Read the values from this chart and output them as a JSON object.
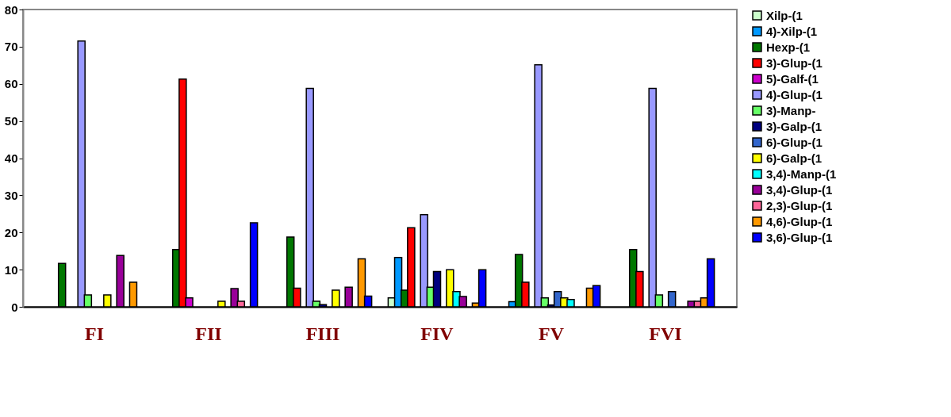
{
  "chart_data": {
    "type": "bar",
    "categories": [
      "FI",
      "FII",
      "FIII",
      "FIV",
      "FV",
      "FVI"
    ],
    "ylim": [
      0,
      80
    ],
    "yticks": [
      0,
      10,
      20,
      30,
      40,
      50,
      60,
      70,
      80
    ],
    "grid": false,
    "legend": "right",
    "series": [
      {
        "name": "Xilp-(1",
        "color": "#ccffcc",
        "values": [
          null,
          null,
          null,
          2.4,
          null,
          null
        ]
      },
      {
        "name": "4)-Xilp-(1",
        "color": "#0099ff",
        "values": [
          null,
          null,
          null,
          13.3,
          1.4,
          null
        ]
      },
      {
        "name": "Hexp-(1",
        "color": "#007700",
        "values": [
          11.7,
          15.4,
          18.8,
          4.5,
          14.1,
          15.4
        ]
      },
      {
        "name": "3)-Glup-(1",
        "color": "#ff0000",
        "values": [
          null,
          61.3,
          5.0,
          21.3,
          6.6,
          9.5
        ]
      },
      {
        "name": "5)-Galf-(1",
        "color": "#cc00cc",
        "values": [
          null,
          2.4,
          null,
          null,
          null,
          null
        ]
      },
      {
        "name": "4)-Glup-(1",
        "color": "#9999ff",
        "values": [
          71.5,
          null,
          58.8,
          24.8,
          65.1,
          58.8
        ]
      },
      {
        "name": "3)-Manp-",
        "color": "#66ff66",
        "values": [
          3.2,
          null,
          1.5,
          5.3,
          2.4,
          3.2
        ]
      },
      {
        "name": "3)-Galp-(1",
        "color": "#000080",
        "values": [
          null,
          null,
          0.6,
          9.5,
          0.5,
          null
        ]
      },
      {
        "name": "6)-Glup-(1",
        "color": "#3366cc",
        "values": [
          null,
          null,
          null,
          null,
          4.1,
          4.1
        ]
      },
      {
        "name": "6)-Galp-(1",
        "color": "#ffff00",
        "values": [
          3.2,
          1.5,
          4.5,
          10.0,
          2.4,
          null
        ]
      },
      {
        "name": "3,4)-Manp-(1",
        "color": "#00ffff",
        "values": [
          null,
          null,
          null,
          4.1,
          2.0,
          null
        ]
      },
      {
        "name": "3,4)-Glup-(1",
        "color": "#990099",
        "values": [
          13.8,
          4.9,
          5.3,
          2.8,
          null,
          1.5
        ]
      },
      {
        "name": "2,3)-Glup-(1",
        "color": "#ff6699",
        "values": [
          null,
          1.5,
          null,
          null,
          null,
          1.5
        ]
      },
      {
        "name": "4,6)-Glup-(1",
        "color": "#ff9900",
        "values": [
          6.6,
          null,
          12.9,
          1.0,
          5.0,
          2.4
        ]
      },
      {
        "name": "3,6)-Glup-(1",
        "color": "#0000ff",
        "values": [
          null,
          22.6,
          2.9,
          10.0,
          5.7,
          12.9
        ]
      }
    ]
  }
}
